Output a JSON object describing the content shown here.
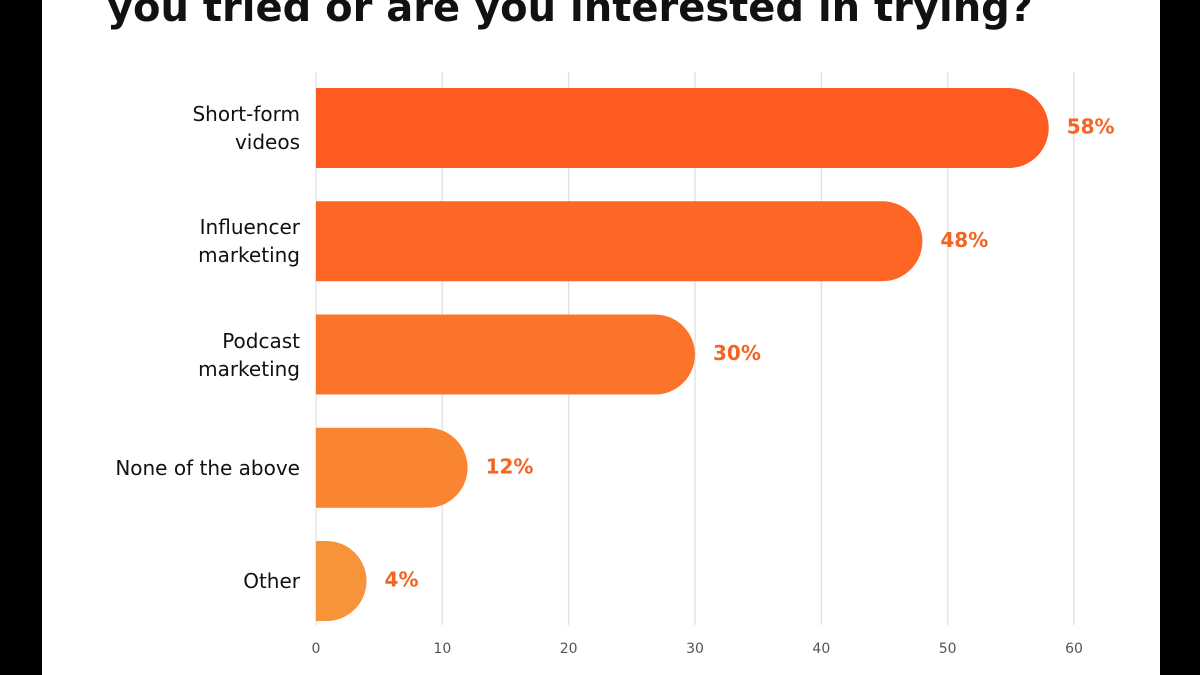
{
  "chart_data": {
    "type": "bar",
    "orientation": "horizontal",
    "title": "you tried or are you interested in trying?",
    "categories": [
      "Short-form\nvideos",
      "Influencer\nmarketing",
      "Podcast\nmarketing",
      "None of the above",
      "Other"
    ],
    "values": [
      58,
      48,
      30,
      12,
      4
    ],
    "value_labels": [
      "58%",
      "48%",
      "30%",
      "12%",
      "4%"
    ],
    "colors": [
      "#ff5a1f",
      "#fd6624",
      "#fb742a",
      "#f98431",
      "#f7943a"
    ],
    "label_color": "#f26522",
    "xlim": [
      0,
      60
    ],
    "xticks": [
      0,
      10,
      20,
      30,
      40,
      50,
      60
    ],
    "grid": true
  }
}
